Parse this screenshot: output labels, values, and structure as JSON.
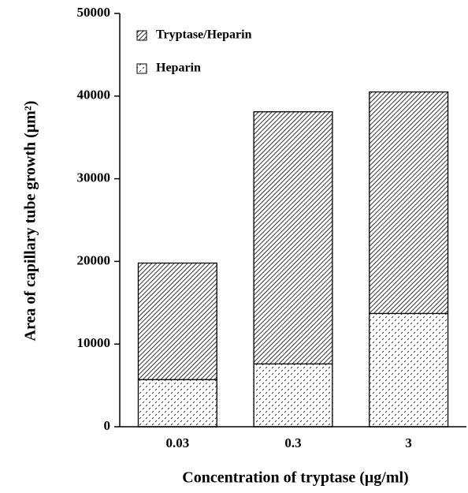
{
  "chart_data": {
    "type": "stacked_bar",
    "y_label": "Area of capillary tube growth (μm²)",
    "x_label": "Concentration of tryptase (μg/ml)",
    "categories": [
      "0.03",
      "0.3",
      "3"
    ],
    "series": [
      {
        "name": "Heparin",
        "color": "#000000",
        "pattern": "dots",
        "values": [
          5700,
          7600,
          13700
        ]
      },
      {
        "name": "Tryptase/Heparin",
        "color": "#000000",
        "pattern": "hatch",
        "values": [
          14100,
          30500,
          26800
        ]
      }
    ],
    "ylim": [
      0,
      50000
    ],
    "yticks": [
      0,
      10000,
      20000,
      30000,
      40000,
      50000
    ],
    "legend": "upper left",
    "grid": false
  }
}
